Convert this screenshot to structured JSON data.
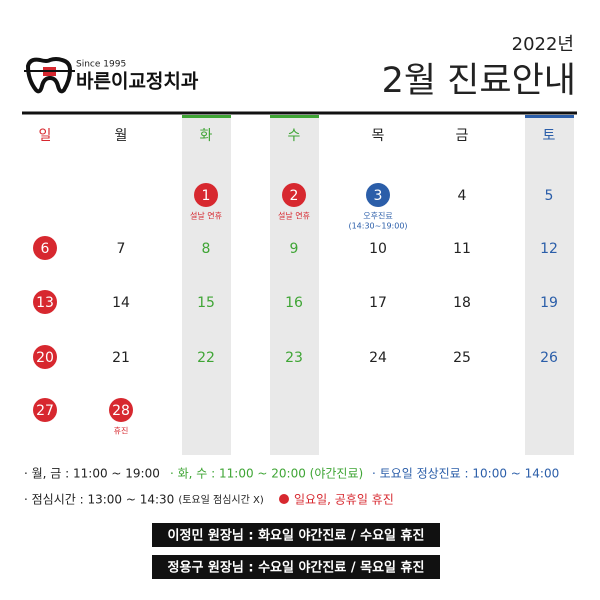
{
  "header": {
    "logo_since": "Since 1995",
    "logo_name": "바른이교정치과",
    "year": "2022년",
    "title": "2월 진료안내"
  },
  "colors": {
    "red": "#d7282f",
    "green": "#3fa535",
    "blue": "#2b5ea9",
    "black": "#222222"
  },
  "calendar": {
    "weekdays": [
      {
        "label": "일",
        "color": "red"
      },
      {
        "label": "월",
        "color": "black"
      },
      {
        "label": "화",
        "color": "green",
        "shaded": true
      },
      {
        "label": "수",
        "color": "green",
        "shaded": true
      },
      {
        "label": "목",
        "color": "black"
      },
      {
        "label": "금",
        "color": "black"
      },
      {
        "label": "토",
        "color": "blue",
        "shaded": true
      }
    ],
    "weeks": [
      [
        null,
        null,
        {
          "day": 1,
          "circle": "red",
          "note": [
            "설날 연휴"
          ]
        },
        {
          "day": 2,
          "circle": "red",
          "note": [
            "설날 연휴"
          ]
        },
        {
          "day": 3,
          "circle": "blue",
          "note": [
            "오후진료",
            "(14:30~19:00)"
          ]
        },
        {
          "day": 4
        },
        {
          "day": 5
        }
      ],
      [
        {
          "day": 6,
          "circle": "red"
        },
        {
          "day": 7
        },
        {
          "day": 8
        },
        {
          "day": 9
        },
        {
          "day": 10
        },
        {
          "day": 11
        },
        {
          "day": 12
        }
      ],
      [
        {
          "day": 13,
          "circle": "red"
        },
        {
          "day": 14
        },
        {
          "day": 15
        },
        {
          "day": 16
        },
        {
          "day": 17
        },
        {
          "day": 18
        },
        {
          "day": 19
        }
      ],
      [
        {
          "day": 20,
          "circle": "red"
        },
        {
          "day": 21
        },
        {
          "day": 22
        },
        {
          "day": 23
        },
        {
          "day": 24
        },
        {
          "day": 25
        },
        {
          "day": 26
        }
      ],
      [
        {
          "day": 27,
          "circle": "red"
        },
        {
          "day": 28,
          "circle": "red",
          "note": [
            "휴진"
          ]
        },
        null,
        null,
        null,
        null,
        null
      ]
    ]
  },
  "legend": {
    "line1": [
      {
        "text": "· 월, 금 : 11:00 ~ 19:00",
        "color": "black"
      },
      {
        "text": "· 화, 수 : 11:00 ~ 20:00 (야간진료)",
        "color": "green"
      },
      {
        "text": "· 토요일 정상진료 : 10:00 ~ 14:00",
        "color": "blue"
      }
    ],
    "lunch": "· 점심시간 : 13:00 ~ 14:30",
    "lunch_note": "(토요일 점심시간 X)",
    "holiday": "일요일, 공휴일 휴진"
  },
  "notices": [
    "이정민 원장님 : 화요일 야간진료 / 수요일 휴진",
    "정용구 원장님 : 수요일 야간진료 / 목요일 휴진"
  ]
}
